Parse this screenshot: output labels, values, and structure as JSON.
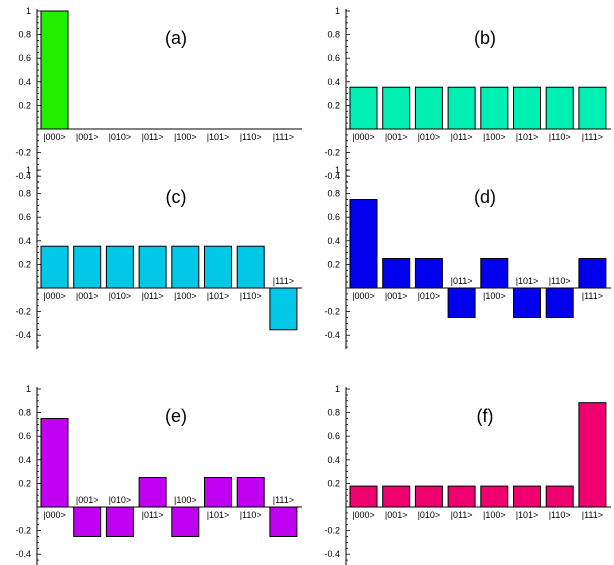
{
  "chart_data": [
    {
      "type": "bar",
      "title": "(a)",
      "categories": [
        "|000>",
        "|001>",
        "|010>",
        "|011>",
        "|100>",
        "|101>",
        "|110>",
        "|111>"
      ],
      "values": [
        1.0,
        0,
        0,
        0,
        0,
        0,
        0,
        0
      ],
      "ylim": [
        -0.5,
        1.0
      ],
      "yticks": [
        1,
        0.8,
        0.6,
        0.4,
        0.2,
        -0.2,
        -0.4
      ],
      "color": "#22ee00",
      "grid": false
    },
    {
      "type": "bar",
      "title": "(b)",
      "categories": [
        "|000>",
        "|001>",
        "|010>",
        "|011>",
        "|100>",
        "|101>",
        "|110>",
        "|111>"
      ],
      "values": [
        0.354,
        0.354,
        0.354,
        0.354,
        0.354,
        0.354,
        0.354,
        0.354
      ],
      "ylim": [
        -0.5,
        1.0
      ],
      "yticks": [
        1,
        0.8,
        0.6,
        0.4,
        0.2,
        -0.2,
        -0.4
      ],
      "color": "#00f0b4",
      "grid": false
    },
    {
      "type": "bar",
      "title": "(c)",
      "categories": [
        "|000>",
        "|001>",
        "|010>",
        "|011>",
        "|100>",
        "|101>",
        "|110>",
        "|111>"
      ],
      "values": [
        0.354,
        0.354,
        0.354,
        0.354,
        0.354,
        0.354,
        0.354,
        -0.354
      ],
      "ylim": [
        -0.5,
        1.0
      ],
      "yticks": [
        1,
        0.8,
        0.6,
        0.4,
        0.2,
        -0.2,
        -0.4
      ],
      "color": "#00c8e6",
      "grid": false
    },
    {
      "type": "bar",
      "title": "(d)",
      "categories": [
        "|000>",
        "|001>",
        "|010>",
        "|011>",
        "|100>",
        "|101>",
        "|110>",
        "|111>"
      ],
      "values": [
        0.75,
        0.25,
        0.25,
        -0.25,
        0.25,
        -0.25,
        -0.25,
        0.25
      ],
      "ylim": [
        -0.5,
        1.0
      ],
      "yticks": [
        1,
        0.8,
        0.6,
        0.4,
        0.2,
        -0.2,
        -0.4
      ],
      "color": "#0000ee",
      "grid": false
    },
    {
      "type": "bar",
      "title": "(e)",
      "categories": [
        "|000>",
        "|001>",
        "|010>",
        "|011>",
        "|100>",
        "|101>",
        "|110>",
        "|111>"
      ],
      "values": [
        0.75,
        -0.25,
        -0.25,
        0.25,
        -0.25,
        0.25,
        0.25,
        -0.25
      ],
      "ylim": [
        -0.5,
        1.0
      ],
      "yticks": [
        1,
        0.8,
        0.6,
        0.4,
        0.2,
        -0.2,
        -0.4
      ],
      "color": "#c000f0",
      "grid": false
    },
    {
      "type": "bar",
      "title": "(f)",
      "categories": [
        "|000>",
        "|001>",
        "|010>",
        "|011>",
        "|100>",
        "|101>",
        "|110>",
        "|111>"
      ],
      "values": [
        0.177,
        0.177,
        0.177,
        0.177,
        0.177,
        0.177,
        0.177,
        0.884
      ],
      "ylim": [
        -0.5,
        1.0
      ],
      "yticks": [
        1,
        0.8,
        0.6,
        0.4,
        0.2,
        -0.2,
        -0.4
      ],
      "color": "#f0006e",
      "grid": false
    }
  ]
}
